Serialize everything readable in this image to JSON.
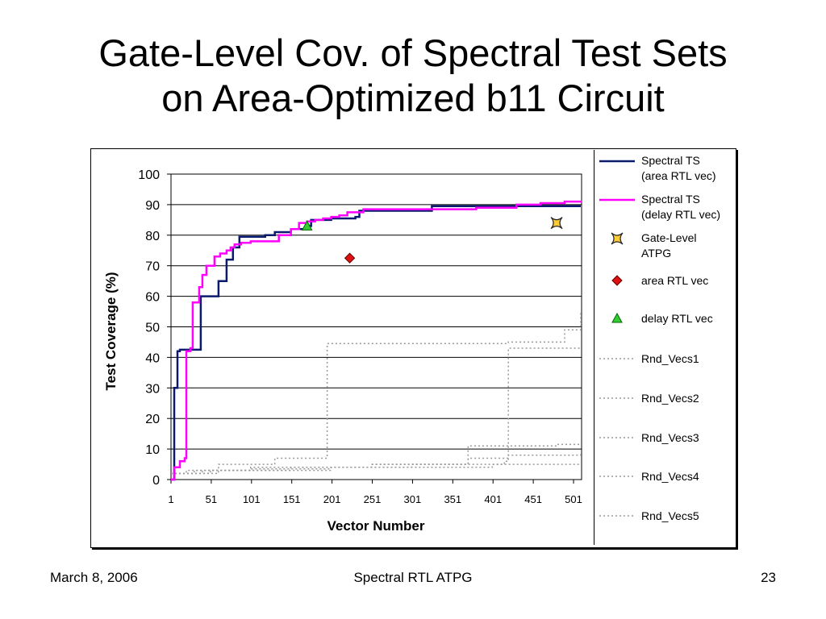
{
  "title": {
    "line1": "Gate-Level Cov. of Spectral Test Sets",
    "line2": "on Area-Optimized b11 Circuit"
  },
  "footer": {
    "date": "March 8, 2006",
    "center": "Spectral RTL ATPG",
    "page": "23"
  },
  "chart_data": {
    "type": "line",
    "xlabel": "Vector Number",
    "ylabel": "Test Coverage (%)",
    "xlim": [
      1,
      511
    ],
    "ylim": [
      0,
      100
    ],
    "x_ticks": [
      "1",
      "51",
      "101",
      "151",
      "201",
      "251",
      "301",
      "351",
      "401",
      "451",
      "501"
    ],
    "y_ticks": [
      "0",
      "10",
      "20",
      "30",
      "40",
      "50",
      "60",
      "70",
      "80",
      "90",
      "100"
    ],
    "grid": "horizontal",
    "legend_position": "right",
    "series": [
      {
        "name": "Spectral TS (area RTL vec)",
        "color": "#0a1a6e",
        "style": "solid",
        "step": true,
        "x": [
          1,
          5,
          9,
          12,
          38,
          40,
          60,
          70,
          78,
          86,
          118,
          130,
          150,
          170,
          175,
          200,
          230,
          235,
          325,
          510
        ],
        "y": [
          0,
          30,
          42,
          42.5,
          60,
          60,
          65,
          72,
          76,
          79.5,
          80,
          81,
          82,
          83,
          85,
          85.5,
          86,
          88,
          89.5,
          89.5
        ]
      },
      {
        "name": "Spectral TS (delay RTL vec)",
        "color": "#ff00ff",
        "style": "solid",
        "step": true,
        "x": [
          1,
          5,
          12,
          18,
          20,
          25,
          26,
          28,
          32,
          36,
          40,
          45,
          55,
          62,
          70,
          75,
          80,
          88,
          100,
          135,
          150,
          160,
          170,
          180,
          190,
          200,
          210,
          220,
          240,
          300,
          380,
          430,
          460,
          490,
          510
        ],
        "y": [
          0,
          4,
          6,
          7,
          42,
          43,
          43,
          58,
          58,
          63,
          67,
          70,
          73,
          74,
          75,
          76,
          77,
          77.5,
          78,
          80,
          82,
          84,
          84.5,
          85,
          85.5,
          86,
          86.5,
          87.5,
          88.5,
          88.5,
          89,
          90,
          90.5,
          91,
          91.2
        ]
      },
      {
        "name": "Rnd_Vecs1",
        "color": "#999999",
        "style": "dotted",
        "step": true,
        "x": [
          1,
          20,
          60,
          130,
          190,
          195,
          420,
          490,
          510
        ],
        "y": [
          2,
          3,
          5,
          7,
          7,
          44.5,
          45,
          49,
          55
        ]
      },
      {
        "name": "Rnd_Vecs2",
        "color": "#999999",
        "style": "dotted",
        "step": true,
        "x": [
          1,
          40,
          100,
          200,
          300,
          415,
          420,
          510
        ],
        "y": [
          2,
          3,
          3.5,
          4,
          5,
          6,
          43,
          43
        ]
      },
      {
        "name": "Rnd_Vecs3",
        "color": "#999999",
        "style": "dotted",
        "step": true,
        "x": [
          1,
          30,
          100,
          250,
          370,
          420,
          510
        ],
        "y": [
          2,
          3,
          4,
          5,
          7,
          8,
          9
        ]
      },
      {
        "name": "Rnd_Vecs4",
        "color": "#999999",
        "style": "dotted",
        "step": true,
        "x": [
          1,
          50,
          150,
          250,
          370,
          480,
          510
        ],
        "y": [
          2,
          3,
          4,
          5,
          11,
          11.5,
          11.5
        ]
      },
      {
        "name": "Rnd_Vecs5",
        "color": "#999999",
        "style": "dotted",
        "step": true,
        "x": [
          1,
          60,
          200,
          400,
          510
        ],
        "y": [
          2,
          3,
          4,
          5,
          5
        ]
      }
    ],
    "points": [
      {
        "name": "Gate-Level ATPG",
        "x": 480,
        "y": 84,
        "marker": "x-star",
        "fill": "#ffcc33",
        "stroke": "#222222"
      },
      {
        "name": "area RTL vec",
        "x": 223,
        "y": 72.5,
        "marker": "diamond",
        "fill": "#dd1111",
        "stroke": "#660000"
      },
      {
        "name": "delay RTL vec",
        "x": 170,
        "y": 83,
        "marker": "triangle",
        "fill": "#33cc33",
        "stroke": "#006600"
      }
    ],
    "legend": [
      {
        "label": "Spectral TS (area RTL vec)",
        "lines": [
          "Spectral TS",
          "(area RTL vec)"
        ],
        "kind": "line",
        "color": "#0a1a6e",
        "style": "solid"
      },
      {
        "label": "Spectral TS (delay RTL vec)",
        "lines": [
          "Spectral TS",
          "(delay RTL vec)"
        ],
        "kind": "line",
        "color": "#ff00ff",
        "style": "solid"
      },
      {
        "label": "Gate-Level ATPG",
        "lines": [
          "Gate-Level",
          "ATPG"
        ],
        "kind": "x-star",
        "color": "#ffcc33"
      },
      {
        "label": "area RTL vec",
        "lines": [
          "area RTL vec"
        ],
        "kind": "diamond",
        "color": "#dd1111"
      },
      {
        "label": "delay RTL vec",
        "lines": [
          "delay RTL vec"
        ],
        "kind": "triangle",
        "color": "#33cc33"
      },
      {
        "label": "Rnd_Vecs1",
        "lines": [
          "Rnd_Vecs1"
        ],
        "kind": "line",
        "color": "#999999",
        "style": "dotted"
      },
      {
        "label": "Rnd_Vecs2",
        "lines": [
          "Rnd_Vecs2"
        ],
        "kind": "line",
        "color": "#999999",
        "style": "dotted"
      },
      {
        "label": "Rnd_Vecs3",
        "lines": [
          "Rnd_Vecs3"
        ],
        "kind": "line",
        "color": "#999999",
        "style": "dotted"
      },
      {
        "label": "Rnd_Vecs4",
        "lines": [
          "Rnd_Vecs4"
        ],
        "kind": "line",
        "color": "#999999",
        "style": "dotted"
      },
      {
        "label": "Rnd_Vecs5",
        "lines": [
          "Rnd_Vecs5"
        ],
        "kind": "line",
        "color": "#999999",
        "style": "dotted"
      }
    ]
  }
}
